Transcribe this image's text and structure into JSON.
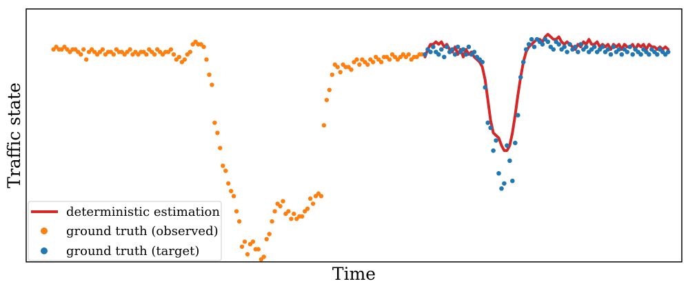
{
  "chart_data": {
    "type": "scatter",
    "xlabel": "Time",
    "ylabel": "Traffic state",
    "xlim": [
      0,
      240
    ],
    "ylim": [
      0,
      100
    ],
    "grid": false,
    "ticks_visible": false,
    "legend_position": "lower-left",
    "series": [
      {
        "name": "deterministic estimation",
        "kind": "line",
        "color": "#d62728",
        "points": [
          [
            146,
            81
          ],
          [
            147,
            84
          ],
          [
            148,
            86
          ],
          [
            149,
            86
          ],
          [
            150,
            87
          ],
          [
            151,
            86
          ],
          [
            152,
            87
          ],
          [
            153,
            85
          ],
          [
            154,
            86
          ],
          [
            155,
            84
          ],
          [
            156,
            83
          ],
          [
            157,
            85
          ],
          [
            158,
            82
          ],
          [
            159,
            84
          ],
          [
            160,
            81
          ],
          [
            161,
            84
          ],
          [
            162,
            82
          ],
          [
            163,
            83
          ],
          [
            164,
            81
          ],
          [
            165,
            80
          ],
          [
            166,
            79
          ],
          [
            167,
            77
          ],
          [
            168,
            72
          ],
          [
            169,
            64
          ],
          [
            170,
            56
          ],
          [
            171,
            51
          ],
          [
            172,
            50
          ],
          [
            173,
            49
          ],
          [
            174,
            46
          ],
          [
            175,
            44
          ],
          [
            176,
            44
          ],
          [
            177,
            46
          ],
          [
            178,
            51
          ],
          [
            179,
            58
          ],
          [
            180,
            66
          ],
          [
            181,
            73
          ],
          [
            182,
            79
          ],
          [
            183,
            83
          ],
          [
            184,
            85
          ],
          [
            185,
            86
          ],
          [
            186,
            87
          ],
          [
            187,
            88
          ],
          [
            188,
            88
          ],
          [
            189,
            87
          ],
          [
            190,
            89
          ],
          [
            191,
            90
          ],
          [
            192,
            89
          ],
          [
            193,
            88
          ],
          [
            194,
            88
          ],
          [
            195,
            89
          ],
          [
            196,
            87
          ],
          [
            197,
            86
          ],
          [
            198,
            87
          ],
          [
            199,
            86
          ],
          [
            200,
            85
          ],
          [
            201,
            84
          ],
          [
            202,
            86
          ],
          [
            203,
            85
          ],
          [
            204,
            87
          ],
          [
            205,
            86
          ],
          [
            206,
            88
          ],
          [
            207,
            86
          ],
          [
            208,
            86
          ],
          [
            209,
            87
          ],
          [
            210,
            85
          ],
          [
            211,
            86
          ],
          [
            212,
            85
          ],
          [
            213,
            86
          ],
          [
            214,
            84
          ],
          [
            215,
            86
          ],
          [
            216,
            85
          ],
          [
            217,
            86
          ],
          [
            218,
            84
          ],
          [
            219,
            86
          ],
          [
            220,
            85
          ],
          [
            221,
            85
          ],
          [
            222,
            86
          ],
          [
            223,
            84
          ],
          [
            224,
            86
          ],
          [
            225,
            85
          ],
          [
            226,
            86
          ],
          [
            227,
            84
          ],
          [
            228,
            86
          ],
          [
            229,
            85
          ],
          [
            230,
            85
          ],
          [
            231,
            84
          ],
          [
            232,
            85
          ],
          [
            233,
            84
          ],
          [
            234,
            85
          ],
          [
            235,
            84
          ]
        ]
      },
      {
        "name": "ground truth (observed)",
        "kind": "scatter",
        "color": "#ff7f0e",
        "points": [
          [
            10,
            84
          ],
          [
            11,
            85
          ],
          [
            12,
            84
          ],
          [
            13,
            84
          ],
          [
            14,
            85
          ],
          [
            15,
            84
          ],
          [
            16,
            83
          ],
          [
            17,
            84
          ],
          [
            18,
            84
          ],
          [
            19,
            83
          ],
          [
            20,
            82
          ],
          [
            21,
            84
          ],
          [
            22,
            80
          ],
          [
            23,
            83
          ],
          [
            24,
            84
          ],
          [
            25,
            83
          ],
          [
            26,
            82
          ],
          [
            27,
            83
          ],
          [
            28,
            84
          ],
          [
            29,
            82
          ],
          [
            30,
            83
          ],
          [
            31,
            83
          ],
          [
            32,
            82
          ],
          [
            33,
            84
          ],
          [
            34,
            83
          ],
          [
            35,
            83
          ],
          [
            36,
            82
          ],
          [
            37,
            83
          ],
          [
            38,
            84
          ],
          [
            39,
            82
          ],
          [
            40,
            83
          ],
          [
            41,
            82
          ],
          [
            42,
            83
          ],
          [
            43,
            83
          ],
          [
            44,
            82
          ],
          [
            45,
            84
          ],
          [
            46,
            83
          ],
          [
            47,
            82
          ],
          [
            48,
            84
          ],
          [
            49,
            83
          ],
          [
            50,
            82
          ],
          [
            51,
            83
          ],
          [
            52,
            83
          ],
          [
            53,
            84
          ],
          [
            54,
            82
          ],
          [
            55,
            80
          ],
          [
            56,
            81
          ],
          [
            57,
            79
          ],
          [
            58,
            80
          ],
          [
            59,
            82
          ],
          [
            60,
            83
          ],
          [
            61,
            86
          ],
          [
            62,
            87
          ],
          [
            63,
            86
          ],
          [
            64,
            86
          ],
          [
            65,
            85
          ],
          [
            66,
            80
          ],
          [
            67,
            74
          ],
          [
            68,
            70
          ],
          [
            69,
            55
          ],
          [
            70,
            51
          ],
          [
            71,
            45
          ],
          [
            72,
            38
          ],
          [
            73,
            36
          ],
          [
            74,
            31
          ],
          [
            75,
            28
          ],
          [
            76,
            26
          ],
          [
            77,
            20
          ],
          [
            78,
            16
          ],
          [
            79,
            6
          ],
          [
            80,
            8
          ],
          [
            81,
            3
          ],
          [
            82,
            7
          ],
          [
            83,
            8
          ],
          [
            84,
            5
          ],
          [
            85,
            5
          ],
          [
            86,
            1
          ],
          [
            87,
            2
          ],
          [
            88,
            9
          ],
          [
            89,
            11
          ],
          [
            90,
            16
          ],
          [
            91,
            20
          ],
          [
            92,
            23
          ],
          [
            93,
            22
          ],
          [
            94,
            24
          ],
          [
            95,
            19
          ],
          [
            96,
            20
          ],
          [
            97,
            17
          ],
          [
            98,
            19
          ],
          [
            99,
            17
          ],
          [
            100,
            18
          ],
          [
            101,
            18
          ],
          [
            102,
            20
          ],
          [
            103,
            21
          ],
          [
            104,
            25
          ],
          [
            105,
            23
          ],
          [
            106,
            26
          ],
          [
            107,
            27
          ],
          [
            108,
            26
          ],
          [
            109,
            54
          ],
          [
            110,
            64
          ],
          [
            111,
            68
          ],
          [
            112,
            74
          ],
          [
            113,
            78
          ],
          [
            114,
            77
          ],
          [
            115,
            75
          ],
          [
            116,
            78
          ],
          [
            117,
            77
          ],
          [
            118,
            77
          ],
          [
            119,
            76
          ],
          [
            120,
            79
          ],
          [
            121,
            80
          ],
          [
            122,
            78
          ],
          [
            123,
            80
          ],
          [
            124,
            79
          ],
          [
            125,
            78
          ],
          [
            126,
            80
          ],
          [
            127,
            79
          ],
          [
            128,
            81
          ],
          [
            129,
            80
          ],
          [
            130,
            79
          ],
          [
            131,
            81
          ],
          [
            132,
            81
          ],
          [
            133,
            80
          ],
          [
            134,
            82
          ],
          [
            135,
            81
          ],
          [
            136,
            80
          ],
          [
            137,
            81
          ],
          [
            138,
            82
          ],
          [
            139,
            81
          ],
          [
            140,
            82
          ],
          [
            141,
            80
          ],
          [
            142,
            81
          ],
          [
            143,
            81
          ],
          [
            144,
            82
          ],
          [
            145,
            82
          ]
        ]
      },
      {
        "name": "ground truth (target)",
        "kind": "scatter",
        "color": "#1f77b4",
        "points": [
          [
            146,
            82
          ],
          [
            147,
            84
          ],
          [
            148,
            83
          ],
          [
            149,
            85
          ],
          [
            150,
            83
          ],
          [
            151,
            82
          ],
          [
            152,
            84
          ],
          [
            153,
            81
          ],
          [
            154,
            85
          ],
          [
            155,
            83
          ],
          [
            156,
            84
          ],
          [
            157,
            82
          ],
          [
            158,
            85
          ],
          [
            159,
            83
          ],
          [
            160,
            84
          ],
          [
            161,
            82
          ],
          [
            162,
            85
          ],
          [
            163,
            82
          ],
          [
            164,
            83
          ],
          [
            165,
            81
          ],
          [
            166,
            80
          ],
          [
            167,
            79
          ],
          [
            168,
            69
          ],
          [
            169,
            55
          ],
          [
            170,
            53
          ],
          [
            171,
            44
          ],
          [
            172,
            48
          ],
          [
            173,
            35
          ],
          [
            174,
            29
          ],
          [
            175,
            31
          ],
          [
            176,
            46
          ],
          [
            177,
            40
          ],
          [
            178,
            32
          ],
          [
            179,
            47
          ],
          [
            180,
            58
          ],
          [
            181,
            73
          ],
          [
            182,
            79
          ],
          [
            183,
            84
          ],
          [
            184,
            86
          ],
          [
            185,
            88
          ],
          [
            186,
            85
          ],
          [
            187,
            88
          ],
          [
            188,
            87
          ],
          [
            189,
            86
          ],
          [
            190,
            88
          ],
          [
            191,
            87
          ],
          [
            192,
            85
          ],
          [
            193,
            84
          ],
          [
            194,
            87
          ],
          [
            195,
            86
          ],
          [
            196,
            84
          ],
          [
            197,
            85
          ],
          [
            198,
            83
          ],
          [
            199,
            86
          ],
          [
            200,
            84
          ],
          [
            201,
            85
          ],
          [
            202,
            83
          ],
          [
            203,
            86
          ],
          [
            204,
            84
          ],
          [
            205,
            85
          ],
          [
            206,
            83
          ],
          [
            207,
            84
          ],
          [
            208,
            85
          ],
          [
            209,
            83
          ],
          [
            210,
            84
          ],
          [
            211,
            85
          ],
          [
            212,
            83
          ],
          [
            213,
            84
          ],
          [
            214,
            82
          ],
          [
            215,
            85
          ],
          [
            216,
            83
          ],
          [
            217,
            84
          ],
          [
            218,
            82
          ],
          [
            219,
            84
          ],
          [
            220,
            83
          ],
          [
            221,
            85
          ],
          [
            222,
            82
          ],
          [
            223,
            84
          ],
          [
            224,
            83
          ],
          [
            225,
            82
          ],
          [
            226,
            84
          ],
          [
            227,
            83
          ],
          [
            228,
            82
          ],
          [
            229,
            84
          ],
          [
            230,
            83
          ],
          [
            231,
            82
          ],
          [
            232,
            84
          ],
          [
            233,
            83
          ],
          [
            234,
            82
          ],
          [
            235,
            83
          ]
        ]
      }
    ]
  }
}
